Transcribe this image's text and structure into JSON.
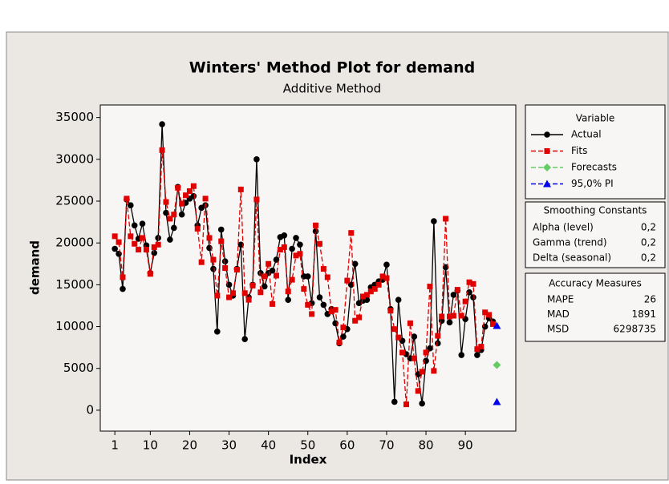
{
  "chart_data": {
    "type": "line",
    "title": "Winters' Method Plot for demand",
    "subtitle": "Additive Method",
    "x_label": "Index",
    "y_label": "demand",
    "x": [
      1,
      2,
      3,
      4,
      5,
      6,
      7,
      8,
      9,
      10,
      11,
      12,
      13,
      14,
      15,
      16,
      17,
      18,
      19,
      20,
      21,
      22,
      23,
      24,
      25,
      26,
      27,
      28,
      29,
      30,
      31,
      32,
      33,
      34,
      35,
      36,
      37,
      38,
      39,
      40,
      41,
      42,
      43,
      44,
      45,
      46,
      47,
      48,
      49,
      50,
      51,
      52,
      53,
      54,
      55,
      56,
      57,
      58,
      59,
      60,
      61,
      62,
      63,
      64,
      65,
      66,
      67,
      68,
      69,
      70,
      71,
      72,
      73,
      74,
      75,
      76,
      77,
      78,
      79,
      80,
      81,
      82,
      83,
      84,
      85,
      86,
      87,
      88,
      89,
      90,
      91,
      92,
      93,
      94,
      95,
      96,
      97,
      98
    ],
    "series": [
      {
        "name": "Actual",
        "color": "#000000",
        "marker": "circle",
        "dash": false,
        "values": [
          19300,
          18700,
          14500,
          25200,
          24500,
          22100,
          20500,
          22300,
          19700,
          16400,
          18800,
          20600,
          34200,
          23600,
          20400,
          21800,
          26700,
          23400,
          24800,
          25300,
          25600,
          22100,
          24200,
          24500,
          19400,
          16900,
          9400,
          21600,
          17800,
          15000,
          13700,
          16900,
          19800,
          8500,
          13500,
          15000,
          30000,
          16400,
          14800,
          16400,
          16700,
          18000,
          20700,
          20900,
          13200,
          19300,
          20600,
          19800,
          16000,
          16000,
          12800,
          21400,
          13500,
          12600,
          11500,
          12100,
          10400,
          8000,
          8800,
          9700,
          15000,
          17500,
          12800,
          13100,
          13200,
          14700,
          15000,
          15400,
          15600,
          17400,
          12100,
          1000,
          13200,
          8300,
          6700,
          6200,
          8800,
          4300,
          800,
          5900,
          7400,
          22600,
          8000,
          10700,
          17100,
          10500,
          13800,
          14300,
          6600,
          10900,
          14100,
          13500,
          6600,
          7200,
          10000,
          11000,
          10600,
          null
        ]
      },
      {
        "name": "Fits",
        "color": "#e00000",
        "marker": "square",
        "dash": true,
        "values": [
          20800,
          20100,
          15900,
          25300,
          20800,
          19900,
          19200,
          20600,
          19200,
          16300,
          19500,
          19800,
          31100,
          24900,
          22900,
          23400,
          26600,
          24700,
          25700,
          26200,
          26800,
          21700,
          17700,
          25300,
          20600,
          18000,
          13700,
          20200,
          17000,
          13500,
          14000,
          16800,
          26400,
          14000,
          13200,
          14900,
          25200,
          14100,
          16000,
          17500,
          12700,
          16100,
          19200,
          19500,
          14200,
          15600,
          18500,
          18700,
          14500,
          12600,
          11500,
          22100,
          19900,
          16900,
          15900,
          11800,
          12000,
          8100,
          9900,
          15500,
          21200,
          10700,
          11100,
          13600,
          13800,
          14200,
          14500,
          15000,
          16000,
          15800,
          11900,
          9700,
          8700,
          6900,
          700,
          10400,
          6200,
          2300,
          4600,
          6900,
          14800,
          4700,
          8900,
          11200,
          22900,
          11200,
          11300,
          14400,
          11300,
          13000,
          15300,
          15100,
          7300,
          7600,
          11700,
          11400,
          10300,
          null
        ]
      },
      {
        "name": "Forecasts",
        "color": "#66cc66",
        "marker": "diamond",
        "dash": true,
        "values": [
          null,
          null,
          null,
          null,
          null,
          null,
          null,
          null,
          null,
          null,
          null,
          null,
          null,
          null,
          null,
          null,
          null,
          null,
          null,
          null,
          null,
          null,
          null,
          null,
          null,
          null,
          null,
          null,
          null,
          null,
          null,
          null,
          null,
          null,
          null,
          null,
          null,
          null,
          null,
          null,
          null,
          null,
          null,
          null,
          null,
          null,
          null,
          null,
          null,
          null,
          null,
          null,
          null,
          null,
          null,
          null,
          null,
          null,
          null,
          null,
          null,
          null,
          null,
          null,
          null,
          null,
          null,
          null,
          null,
          null,
          null,
          null,
          null,
          null,
          null,
          null,
          null,
          null,
          null,
          null,
          null,
          null,
          null,
          null,
          null,
          null,
          null,
          null,
          null,
          null,
          null,
          null,
          null,
          null,
          null,
          null,
          null,
          5400
        ]
      },
      {
        "name": "95,0% PI",
        "color": "#0000ee",
        "marker": "triangle",
        "dash": true,
        "upper": [
          null,
          null,
          null,
          null,
          null,
          null,
          null,
          null,
          null,
          null,
          null,
          null,
          null,
          null,
          null,
          null,
          null,
          null,
          null,
          null,
          null,
          null,
          null,
          null,
          null,
          null,
          null,
          null,
          null,
          null,
          null,
          null,
          null,
          null,
          null,
          null,
          null,
          null,
          null,
          null,
          null,
          null,
          null,
          null,
          null,
          null,
          null,
          null,
          null,
          null,
          null,
          null,
          null,
          null,
          null,
          null,
          null,
          null,
          null,
          null,
          null,
          null,
          null,
          null,
          null,
          null,
          null,
          null,
          null,
          null,
          null,
          null,
          null,
          null,
          null,
          null,
          null,
          null,
          null,
          null,
          null,
          null,
          null,
          null,
          null,
          null,
          null,
          null,
          null,
          null,
          null,
          null,
          null,
          null,
          null,
          null,
          null,
          10100
        ],
        "lower": [
          null,
          null,
          null,
          null,
          null,
          null,
          null,
          null,
          null,
          null,
          null,
          null,
          null,
          null,
          null,
          null,
          null,
          null,
          null,
          null,
          null,
          null,
          null,
          null,
          null,
          null,
          null,
          null,
          null,
          null,
          null,
          null,
          null,
          null,
          null,
          null,
          null,
          null,
          null,
          null,
          null,
          null,
          null,
          null,
          null,
          null,
          null,
          null,
          null,
          null,
          null,
          null,
          null,
          null,
          null,
          null,
          null,
          null,
          null,
          null,
          null,
          null,
          null,
          null,
          null,
          null,
          null,
          null,
          null,
          null,
          null,
          null,
          null,
          null,
          null,
          null,
          null,
          null,
          null,
          null,
          null,
          null,
          null,
          null,
          null,
          null,
          null,
          null,
          null,
          null,
          null,
          null,
          null,
          null,
          null,
          null,
          null,
          1000
        ]
      }
    ],
    "xlim": [
      -2.7,
      102.8
    ],
    "xticks": [
      1,
      10,
      20,
      30,
      40,
      50,
      60,
      70,
      80,
      90
    ],
    "ylim": [
      -2500,
      36500
    ],
    "yticks": [
      0,
      5000,
      10000,
      15000,
      20000,
      25000,
      30000,
      35000
    ],
    "legend_title": "Variable",
    "smoothing": {
      "title": "Smoothing Constants",
      "rows": [
        [
          "Alpha (level)",
          "0,2"
        ],
        [
          "Gamma (trend)",
          "0,2"
        ],
        [
          "Delta (seasonal)",
          "0,2"
        ]
      ]
    },
    "accuracy": {
      "title": "Accuracy Measures",
      "rows": [
        [
          "MAPE",
          "26"
        ],
        [
          "MAD",
          "1891"
        ],
        [
          "MSD",
          "6298735"
        ]
      ]
    }
  }
}
